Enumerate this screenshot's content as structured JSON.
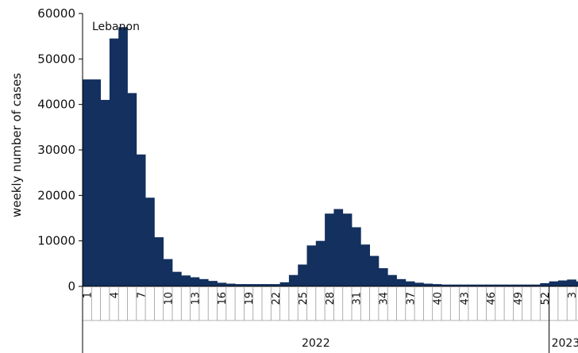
{
  "chart_data": {
    "type": "bar",
    "annotation": "Lebanon",
    "ylabel": "weekly number of cases",
    "ylim": [
      0,
      60000
    ],
    "yticks": [
      0,
      10000,
      20000,
      30000,
      40000,
      50000,
      60000
    ],
    "bar_color": "#13305e",
    "years": [
      {
        "label": "2022",
        "weeks": [
          1,
          2,
          3,
          4,
          5,
          6,
          7,
          8,
          9,
          10,
          11,
          12,
          13,
          14,
          15,
          16,
          17,
          18,
          19,
          20,
          21,
          22,
          23,
          24,
          25,
          26,
          27,
          28,
          29,
          30,
          31,
          32,
          33,
          34,
          35,
          36,
          37,
          38,
          39,
          40,
          41,
          42,
          43,
          44,
          45,
          46,
          47,
          48,
          49,
          50,
          51,
          52
        ]
      },
      {
        "label": "2023",
        "weeks": [
          1,
          2,
          3,
          4
        ]
      }
    ],
    "tick_labels": [
      "1",
      "4",
      "7",
      "10",
      "13",
      "16",
      "19",
      "22",
      "25",
      "28",
      "31",
      "34",
      "37",
      "40",
      "43",
      "46",
      "49",
      "52",
      "3"
    ],
    "values": [
      45500,
      45500,
      41000,
      54500,
      57000,
      42500,
      29000,
      19500,
      10800,
      6000,
      3200,
      2400,
      2000,
      1600,
      1200,
      800,
      600,
      500,
      500,
      500,
      500,
      500,
      900,
      2500,
      4800,
      9000,
      10000,
      16000,
      17000,
      16000,
      13000,
      9200,
      6700,
      4000,
      2500,
      1600,
      1100,
      800,
      600,
      500,
      400,
      400,
      400,
      400,
      400,
      400,
      400,
      400,
      400,
      400,
      400,
      700,
      1100,
      1300,
      1500,
      1100
    ]
  }
}
